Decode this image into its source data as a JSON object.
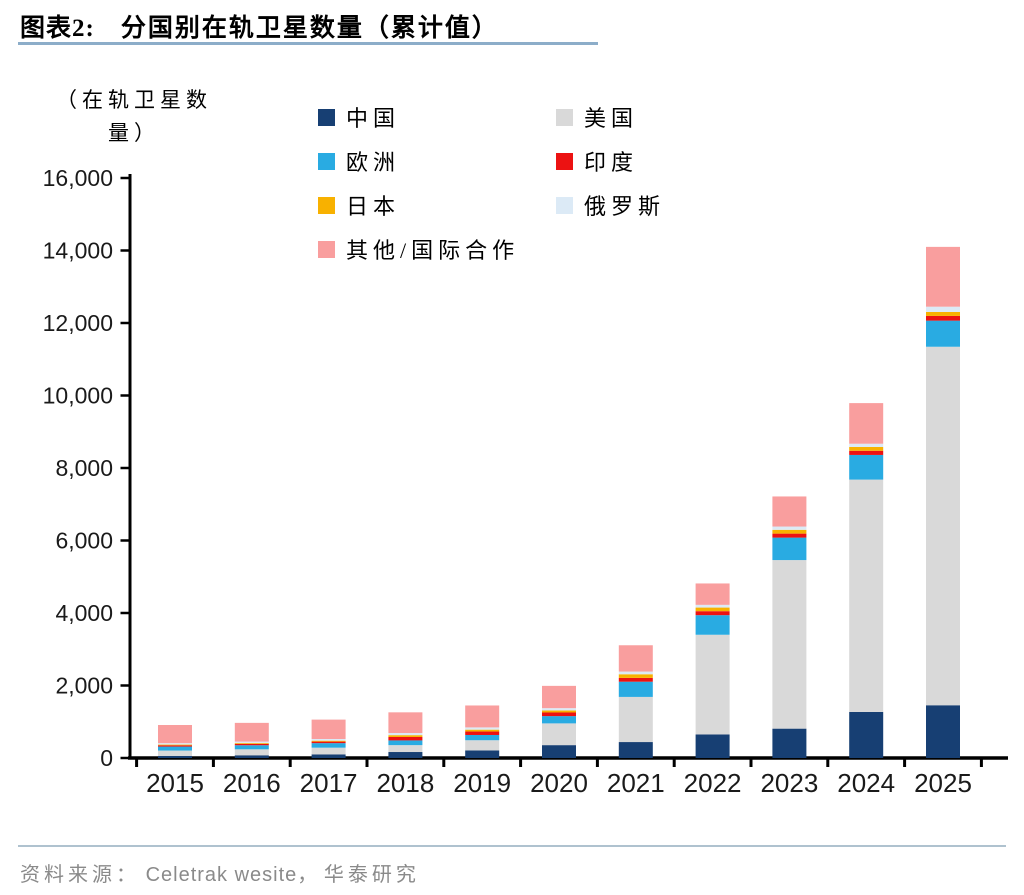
{
  "header": {
    "tag": "图表2:",
    "title": "分国别在轨卫星数量（累计值）"
  },
  "unit_label": {
    "line1": "（在轨卫星数",
    "line2": "量）"
  },
  "source": {
    "prefix": "资料来源：",
    "citation": "Celetrak wesite，",
    "suffix": "华泰研究"
  },
  "chart_data": {
    "type": "bar",
    "stacked": true,
    "title": "分国别在轨卫星数量（累计值）",
    "ylabel": "（在轨卫星数量）",
    "xlabel": "",
    "ylim": [
      0,
      16000
    ],
    "ytick_step": 2000,
    "grid": false,
    "legend_position": "top",
    "categories": [
      2015,
      2016,
      2017,
      2018,
      2019,
      2020,
      2021,
      2022,
      2023,
      2024,
      2025
    ],
    "series": [
      {
        "name": "中国",
        "color": "#173F73",
        "values": [
          55,
          75,
          100,
          165,
          210,
          355,
          440,
          650,
          810,
          1270,
          1455
        ]
      },
      {
        "name": "美国",
        "color": "#D9D9D9",
        "values": [
          150,
          165,
          185,
          190,
          280,
          600,
          1245,
          2750,
          4650,
          6410,
          9890
        ]
      },
      {
        "name": "欧洲",
        "color": "#29ABE2",
        "values": [
          110,
          112,
          125,
          130,
          145,
          200,
          420,
          540,
          620,
          680,
          720
        ]
      },
      {
        "name": "印度",
        "color": "#EC1212",
        "values": [
          35,
          38,
          42,
          95,
          95,
          100,
          105,
          110,
          110,
          115,
          130
        ]
      },
      {
        "name": "日本",
        "color": "#F8B100",
        "values": [
          20,
          22,
          26,
          50,
          52,
          55,
          100,
          100,
          105,
          105,
          110
        ]
      },
      {
        "name": "俄罗斯",
        "color": "#DCEAF6",
        "values": [
          40,
          42,
          46,
          60,
          62,
          65,
          75,
          75,
          90,
          90,
          145
        ]
      },
      {
        "name": "其他/国际合作",
        "color": "#F99E9E",
        "values": [
          500,
          515,
          535,
          570,
          605,
          615,
          725,
          590,
          830,
          1120,
          1650
        ]
      }
    ]
  }
}
